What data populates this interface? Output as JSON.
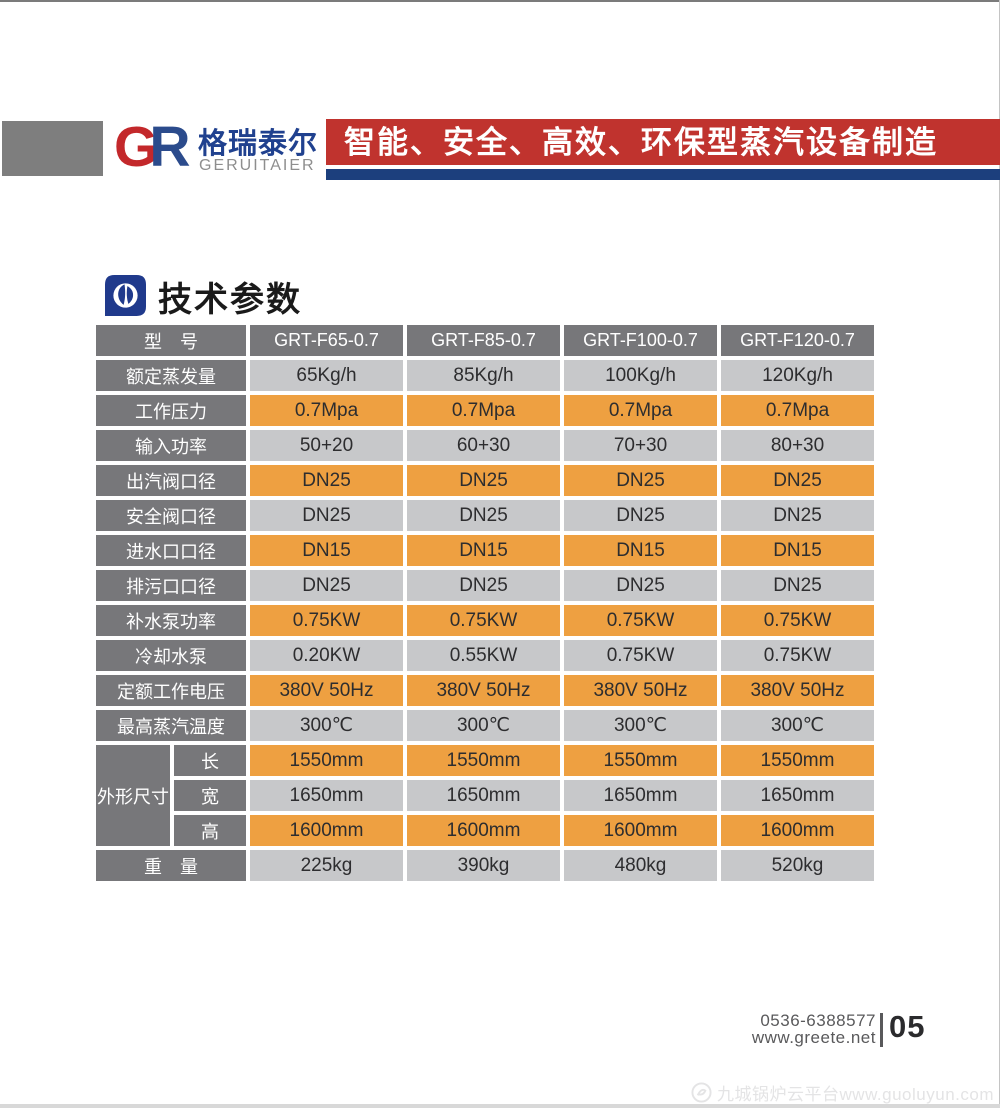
{
  "header": {
    "logo": {
      "g": "G",
      "r": "R",
      "name_cn": "格瑞泰尔",
      "name_en": "GERUITAIER"
    },
    "slogan": "智能、安全、高效、环保型蒸汽设备制造"
  },
  "section": {
    "title": "技术参数"
  },
  "table": {
    "header_label": "型　号",
    "models": [
      "GRT-F65-0.7",
      "GRT-F85-0.7",
      "GRT-F100-0.7",
      "GRT-F120-0.7"
    ],
    "rows": [
      {
        "label": "额定蒸发量",
        "tone": "gray",
        "values": [
          "65Kg/h",
          "85Kg/h",
          "100Kg/h",
          "120Kg/h"
        ]
      },
      {
        "label": "工作压力",
        "tone": "orange",
        "values": [
          "0.7Mpa",
          "0.7Mpa",
          "0.7Mpa",
          "0.7Mpa"
        ]
      },
      {
        "label": "输入功率",
        "tone": "gray",
        "values": [
          "50+20",
          "60+30",
          "70+30",
          "80+30"
        ]
      },
      {
        "label": "出汽阀口径",
        "tone": "orange",
        "values": [
          "DN25",
          "DN25",
          "DN25",
          "DN25"
        ]
      },
      {
        "label": "安全阀口径",
        "tone": "gray",
        "values": [
          "DN25",
          "DN25",
          "DN25",
          "DN25"
        ]
      },
      {
        "label": "进水口口径",
        "tone": "orange",
        "values": [
          "DN15",
          "DN15",
          "DN15",
          "DN15"
        ]
      },
      {
        "label": "排污口口径",
        "tone": "gray",
        "values": [
          "DN25",
          "DN25",
          "DN25",
          "DN25"
        ]
      },
      {
        "label": "补水泵功率",
        "tone": "orange",
        "values": [
          "0.75KW",
          "0.75KW",
          "0.75KW",
          "0.75KW"
        ]
      },
      {
        "label": "冷却水泵",
        "tone": "gray",
        "values": [
          "0.20KW",
          "0.55KW",
          "0.75KW",
          "0.75KW"
        ]
      },
      {
        "label": "定额工作电压",
        "tone": "orange",
        "values": [
          "380V  50Hz",
          "380V  50Hz",
          "380V  50Hz",
          "380V  50Hz"
        ]
      },
      {
        "label": "最高蒸汽温度",
        "tone": "gray",
        "values": [
          "300℃",
          "300℃",
          "300℃",
          "300℃"
        ]
      }
    ],
    "dim_group": {
      "label": "外形尺寸",
      "rows": [
        {
          "label": "长",
          "tone": "orange",
          "values": [
            "1550mm",
            "1550mm",
            "1550mm",
            "1550mm"
          ]
        },
        {
          "label": "宽",
          "tone": "gray",
          "values": [
            "1650mm",
            "1650mm",
            "1650mm",
            "1650mm"
          ]
        },
        {
          "label": "高",
          "tone": "orange",
          "values": [
            "1600mm",
            "1600mm",
            "1600mm",
            "1600mm"
          ]
        }
      ]
    },
    "weight_row": {
      "label": "重　量",
      "tone": "gray",
      "values": [
        "225kg",
        "390kg",
        "480kg",
        "520kg"
      ]
    }
  },
  "footer": {
    "phone": "0536-6388577",
    "website": "www.greete.net",
    "page_number": "05"
  },
  "watermark": {
    "text": "九城锅炉云平台www.guoluyun.com"
  },
  "colors": {
    "banner_red": "#c0332e",
    "strip_blue": "#1c3f7d",
    "logo_red": "#c3282b",
    "logo_blue": "#2b4b8c",
    "label_gray": "#77777a",
    "cell_gray": "#c7c8ca",
    "cell_orange": "#eea041",
    "icon_blue": "#203a8c"
  }
}
